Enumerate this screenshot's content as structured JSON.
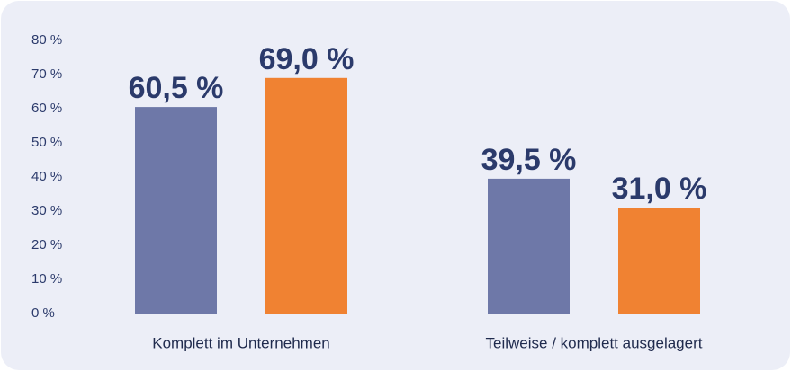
{
  "chart_data": {
    "type": "bar",
    "categories": [
      "Komplett im Unternehmen",
      "Teilweise / komplett ausgelagert"
    ],
    "series": [
      {
        "color": "#6e78a8",
        "values": [
          60.5,
          39.5
        ],
        "value_labels": [
          "60,5 %",
          "39,5 %"
        ]
      },
      {
        "color": "#f08232",
        "values": [
          69.0,
          31.0
        ],
        "value_labels": [
          "69,0 %",
          "31,0 %"
        ]
      }
    ],
    "ylim": [
      0,
      80
    ],
    "yticks": [
      {
        "value": 0,
        "label": "0 %"
      },
      {
        "value": 10,
        "label": "10 %"
      },
      {
        "value": 20,
        "label": "20 %"
      },
      {
        "value": 30,
        "label": "30 %"
      },
      {
        "value": 40,
        "label": "40 %"
      },
      {
        "value": 50,
        "label": "50 %"
      },
      {
        "value": 60,
        "label": "60 %"
      },
      {
        "value": 70,
        "label": "70 %"
      },
      {
        "value": 80,
        "label": "80 %"
      }
    ],
    "grid": false
  }
}
